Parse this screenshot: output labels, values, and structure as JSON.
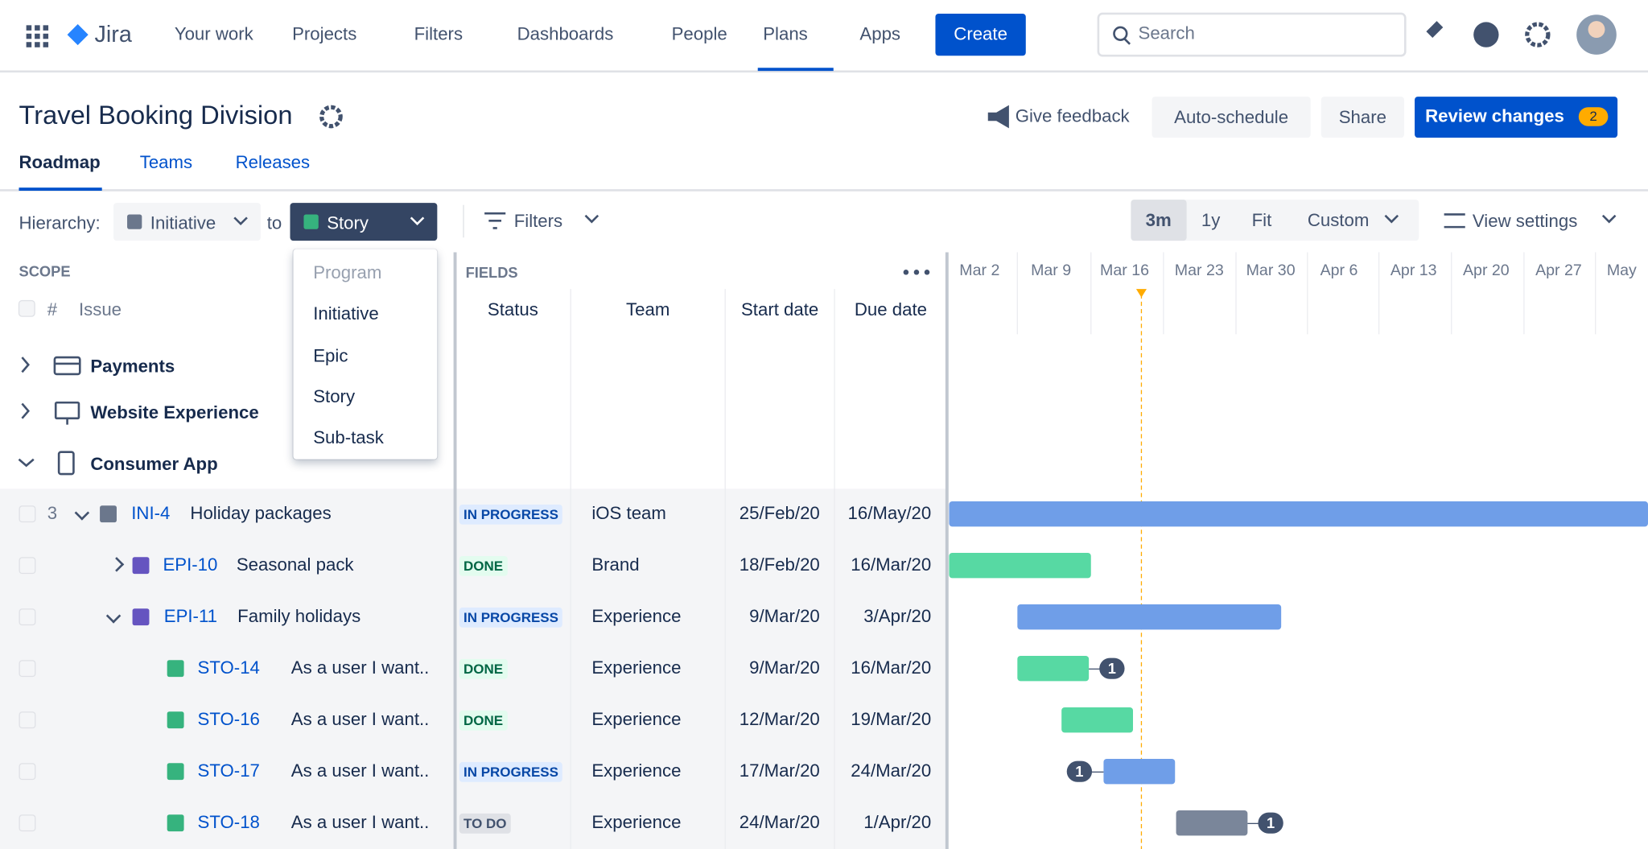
{
  "nav": {
    "logo": "Jira",
    "items": [
      "Your work",
      "Projects",
      "Filters",
      "Dashboards",
      "People",
      "Plans",
      "Apps"
    ],
    "create": "Create",
    "search": "Search"
  },
  "header": {
    "title": "Travel Booking Division",
    "feedback": "Give feedback",
    "auto_schedule": "Auto-schedule",
    "share": "Share",
    "review": "Review changes",
    "review_count": 2
  },
  "tabs": [
    "Roadmap",
    "Teams",
    "Releases"
  ],
  "toolbar": {
    "hierarchy_label": "Hierarchy:",
    "from": "Initiative",
    "to_label": "to",
    "to": "Story",
    "filters": "Filters",
    "zoom": [
      "3m",
      "1y",
      "Fit",
      "Custom"
    ],
    "view_settings": "View settings"
  },
  "dropdown": [
    "Program",
    "Initiative",
    "Epic",
    "Story",
    "Sub-task"
  ],
  "scope": {
    "label": "SCOPE",
    "hash": "#",
    "issue": "Issue"
  },
  "fields": {
    "label": "FIELDS",
    "columns": [
      "Status",
      "Team",
      "Start date",
      "Due date"
    ]
  },
  "timeline": [
    "Mar 2",
    "Mar 9",
    "Mar 16",
    "Mar 23",
    "Mar 30",
    "Apr 6",
    "Apr 13",
    "Apr 20",
    "Apr 27",
    "May"
  ],
  "groups": [
    "Payments",
    "Website Experience",
    "Consumer App"
  ],
  "rows": [
    {
      "count": 3,
      "key": "INI-4",
      "summary": "Holiday packages",
      "status": "IN PROGRESS",
      "team": "iOS team",
      "start": "25/Feb/20",
      "due": "16/May/20"
    },
    {
      "key": "EPI-10",
      "summary": "Seasonal pack",
      "status": "DONE",
      "team": "Brand",
      "start": "18/Feb/20",
      "due": "16/Mar/20"
    },
    {
      "key": "EPI-11",
      "summary": "Family holidays",
      "status": "IN PROGRESS",
      "team": "Experience",
      "start": "9/Mar/20",
      "due": "3/Apr/20"
    },
    {
      "key": "STO-14",
      "summary": "As a user I want..",
      "status": "DONE",
      "team": "Experience",
      "start": "9/Mar/20",
      "due": "16/Mar/20",
      "badge": 1
    },
    {
      "key": "STO-16",
      "summary": "As a user I want..",
      "status": "DONE",
      "team": "Experience",
      "start": "12/Mar/20",
      "due": "19/Mar/20"
    },
    {
      "key": "STO-17",
      "summary": "As a user I want..",
      "status": "IN PROGRESS",
      "team": "Experience",
      "start": "17/Mar/20",
      "due": "24/Mar/20",
      "badge": 1
    },
    {
      "key": "STO-18",
      "summary": "As a user I want..",
      "status": "TO DO",
      "team": "Experience",
      "start": "24/Mar/20",
      "due": "1/Apr/20",
      "badge": 1
    }
  ]
}
